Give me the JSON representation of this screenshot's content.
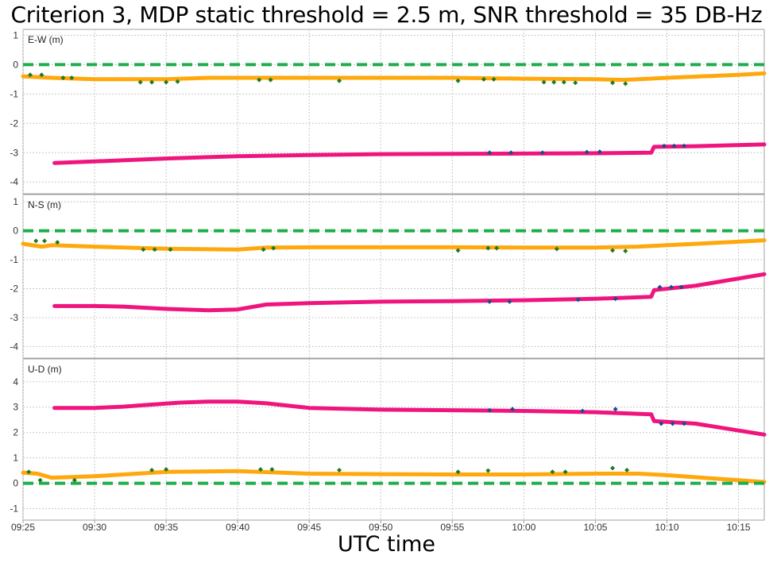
{
  "title": "Criterion 3, MDP static threshold = 2.5 m, SNR threshold = 35 DB-Hz",
  "xlabel": "UTC time",
  "colors": {
    "zero_line": "#1fae4b",
    "orange": "#ffa80c",
    "magenta": "#f0157e",
    "green_dots": "#1f7a1f",
    "blue_dots": "#1e4d8c",
    "grid": "#c8c8c8",
    "frame": "#a0a0a0"
  },
  "chart_data": [
    {
      "type": "line",
      "panel_label": "E-W (m)",
      "ylim": [
        -4.4,
        1.2
      ],
      "yticks": [
        1,
        0,
        -1,
        -2,
        -3,
        -4
      ],
      "grid": true,
      "series": [
        {
          "color": "orange",
          "style": "solid-thick",
          "x": [
            "09:25",
            "09:27",
            "09:30",
            "09:35",
            "09:38",
            "09:45",
            "09:50",
            "09:55",
            "10:00",
            "10:05",
            "10:07",
            "10:10",
            "10:15",
            "10:16.8"
          ],
          "y": [
            -0.4,
            -0.45,
            -0.5,
            -0.5,
            -0.45,
            -0.45,
            -0.45,
            -0.45,
            -0.48,
            -0.5,
            -0.52,
            -0.45,
            -0.35,
            -0.3
          ]
        },
        {
          "color": "magenta",
          "style": "solid-thick",
          "x": [
            "09:27.2",
            "09:30",
            "09:35",
            "09:40",
            "09:45",
            "09:50",
            "09:55",
            "10:00",
            "10:05",
            "10:08.9",
            "10:09.1",
            "10:12",
            "10:16.8"
          ],
          "y": [
            -3.35,
            -3.3,
            -3.2,
            -3.12,
            -3.08,
            -3.05,
            -3.04,
            -3.03,
            -3.02,
            -3.0,
            -2.8,
            -2.78,
            -2.72
          ]
        },
        {
          "color": "zero_line",
          "style": "dashed",
          "x": [
            "09:25",
            "10:16.8"
          ],
          "y": [
            0,
            0
          ]
        }
      ],
      "markers": [
        {
          "color": "green_dots",
          "x": [
            "09:25.5",
            "09:26.3",
            "09:27.8",
            "09:28.4",
            "09:33.2",
            "09:34",
            "09:35",
            "09:35.8",
            "09:41.5",
            "09:42.3",
            "09:47.1",
            "09:55.4",
            "09:57.2",
            "09:57.9",
            "10:01.4",
            "10:02.1",
            "10:02.8",
            "10:03.6",
            "10:06.2",
            "10:07.1"
          ],
          "y": [
            -0.35,
            -0.35,
            -0.45,
            -0.45,
            -0.6,
            -0.6,
            -0.6,
            -0.58,
            -0.52,
            -0.52,
            -0.55,
            -0.55,
            -0.5,
            -0.5,
            -0.6,
            -0.6,
            -0.6,
            -0.62,
            -0.62,
            -0.65
          ]
        },
        {
          "color": "blue_dots",
          "x": [
            "09:57.6",
            "09:59.1",
            "10:01.3",
            "10:04.4",
            "10:05.3",
            "10:09.8",
            "10:10.5",
            "10:11.2"
          ],
          "y": [
            -3.0,
            -3.0,
            -3.0,
            -2.98,
            -2.97,
            -2.77,
            -2.77,
            -2.77
          ]
        }
      ]
    },
    {
      "type": "line",
      "panel_label": "N-S (m)",
      "ylim": [
        -4.4,
        1.25
      ],
      "yticks": [
        1,
        0,
        -1,
        -2,
        -3,
        -4
      ],
      "grid": true,
      "series": [
        {
          "color": "orange",
          "style": "solid-thick",
          "x": [
            "09:25",
            "09:26.3",
            "09:27",
            "09:30",
            "09:35",
            "09:40",
            "09:42",
            "09:45",
            "09:50",
            "09:55",
            "10:00",
            "10:05",
            "10:08",
            "10:10",
            "10:15",
            "10:16.8"
          ],
          "y": [
            -0.45,
            -0.55,
            -0.5,
            -0.55,
            -0.62,
            -0.65,
            -0.58,
            -0.57,
            -0.57,
            -0.57,
            -0.58,
            -0.58,
            -0.55,
            -0.5,
            -0.38,
            -0.33
          ]
        },
        {
          "color": "magenta",
          "style": "solid-thick",
          "x": [
            "09:27.2",
            "09:30",
            "09:32",
            "09:35",
            "09:38",
            "09:40",
            "09:42",
            "09:45",
            "09:50",
            "09:55",
            "10:00",
            "10:05",
            "10:08.9",
            "10:09.1",
            "10:12",
            "10:16.8"
          ],
          "y": [
            -2.6,
            -2.6,
            -2.62,
            -2.7,
            -2.75,
            -2.72,
            -2.55,
            -2.5,
            -2.45,
            -2.43,
            -2.4,
            -2.35,
            -2.28,
            -2.05,
            -1.9,
            -1.5
          ]
        },
        {
          "color": "zero_line",
          "style": "dashed",
          "x": [
            "09:25",
            "10:16.8"
          ],
          "y": [
            0,
            0
          ]
        }
      ],
      "markers": [
        {
          "color": "green_dots",
          "x": [
            "09:25.9",
            "09:26.5",
            "09:27.4",
            "09:33.4",
            "09:34.2",
            "09:35.3",
            "09:41.8",
            "09:42.5",
            "09:55.4",
            "09:57.5",
            "09:58.1",
            "10:02.3",
            "10:06.2",
            "10:07.1"
          ],
          "y": [
            -0.35,
            -0.35,
            -0.4,
            -0.65,
            -0.65,
            -0.65,
            -0.65,
            -0.6,
            -0.68,
            -0.6,
            -0.6,
            -0.63,
            -0.68,
            -0.7
          ]
        },
        {
          "color": "blue_dots",
          "x": [
            "09:57.6",
            "09:59",
            "10:03.8",
            "10:06.4",
            "10:09.5",
            "10:10.3",
            "10:11"
          ],
          "y": [
            -2.45,
            -2.45,
            -2.38,
            -2.35,
            -1.95,
            -1.95,
            -1.95
          ]
        }
      ]
    },
    {
      "type": "line",
      "panel_label": "U-D (m)",
      "ylim": [
        -1.45,
        4.9
      ],
      "yticks": [
        4,
        3,
        2,
        1,
        0,
        -1
      ],
      "grid": true,
      "series": [
        {
          "color": "magenta",
          "style": "solid-thick",
          "x": [
            "09:27.2",
            "09:30",
            "09:32",
            "09:34",
            "09:36",
            "09:38",
            "09:40",
            "09:42",
            "09:45",
            "09:50",
            "09:55",
            "10:00",
            "10:05",
            "10:08.9",
            "10:09.1",
            "10:12",
            "10:16.8"
          ],
          "y": [
            2.97,
            2.97,
            3.02,
            3.1,
            3.18,
            3.22,
            3.22,
            3.15,
            2.97,
            2.9,
            2.88,
            2.85,
            2.8,
            2.72,
            2.45,
            2.35,
            1.92
          ]
        },
        {
          "color": "orange",
          "style": "solid-thick",
          "x": [
            "09:25",
            "09:26",
            "09:27",
            "09:30",
            "09:35",
            "09:40",
            "09:45",
            "09:50",
            "09:55",
            "10:00",
            "10:05",
            "10:08",
            "10:10",
            "10:13",
            "10:16.8"
          ],
          "y": [
            0.42,
            0.38,
            0.22,
            0.28,
            0.45,
            0.48,
            0.38,
            0.36,
            0.35,
            0.35,
            0.38,
            0.38,
            0.32,
            0.2,
            0.05
          ]
        },
        {
          "color": "zero_line",
          "style": "dashed",
          "x": [
            "09:25",
            "10:16.8"
          ],
          "y": [
            0,
            0
          ]
        }
      ],
      "markers": [
        {
          "color": "green_dots",
          "x": [
            "09:25.4",
            "09:26.2",
            "09:28.6",
            "09:34",
            "09:35",
            "09:41.6",
            "09:42.4",
            "09:47.1",
            "09:55.4",
            "09:57.5",
            "10:02",
            "10:02.9",
            "10:06.2",
            "10:07.2"
          ],
          "y": [
            0.45,
            0.12,
            0.12,
            0.52,
            0.55,
            0.55,
            0.55,
            0.52,
            0.45,
            0.5,
            0.45,
            0.45,
            0.6,
            0.52
          ]
        },
        {
          "color": "blue_dots",
          "x": [
            "09:57.6",
            "09:59.2",
            "10:04.1",
            "10:06.4",
            "10:09.6",
            "10:10.4",
            "10:11.2"
          ],
          "y": [
            2.88,
            2.92,
            2.85,
            2.92,
            2.35,
            2.35,
            2.35
          ]
        }
      ]
    }
  ],
  "x_axis": {
    "tick_labels": [
      "09:25",
      "09:30",
      "09:35",
      "09:40",
      "09:45",
      "09:50",
      "09:55",
      "10:00",
      "10:05",
      "10:10",
      "10:15"
    ],
    "range": [
      "09:25",
      "10:16.8"
    ]
  }
}
